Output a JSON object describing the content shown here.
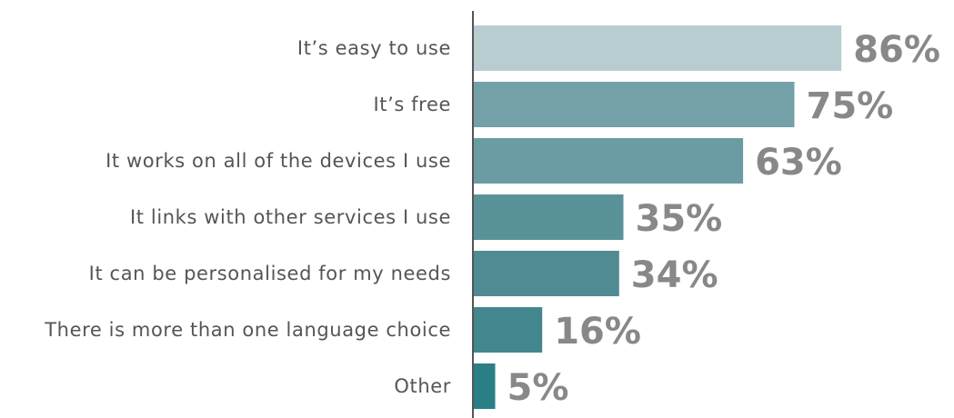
{
  "chart_data": {
    "type": "bar",
    "orientation": "horizontal",
    "categories": [
      "It’s easy to use",
      "It’s free",
      "It works on all of the devices I use",
      "It links with other services I use",
      "It can be personalised for my needs",
      "There is more than one language choice",
      "Other"
    ],
    "values": [
      86,
      75,
      63,
      35,
      34,
      16,
      5
    ],
    "value_labels": [
      "86%",
      "75%",
      "63%",
      "35%",
      "34%",
      "16%",
      "5%"
    ],
    "colors": [
      "#b8cdd0",
      "#74a0a7",
      "#6b9ca3",
      "#5a9299",
      "#508b94",
      "#44868e",
      "#2a7f86"
    ],
    "axis_color": "#555555",
    "xlim": [
      0,
      100
    ],
    "grid": false,
    "legend": "none"
  }
}
